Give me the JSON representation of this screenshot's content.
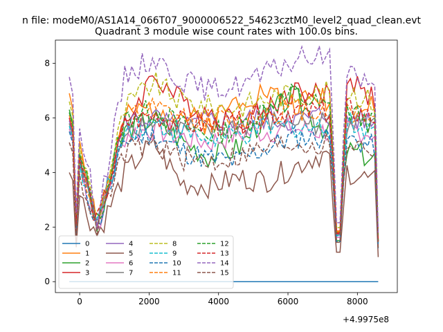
{
  "header": {
    "suptitle": "n file: modeM0/AS1A14_066T07_9000006522_54623cztM0_level2_quad_clean.evt",
    "title": "Quadrant 3 module wise count rates with 100.0s bins."
  },
  "axes": {
    "offset_label": "+4.9975e8",
    "x_ticks": [
      "0",
      "2000",
      "4000",
      "6000",
      "8000"
    ],
    "y_ticks": [
      "0",
      "2",
      "4",
      "6",
      "8"
    ]
  },
  "legend": {
    "labels": [
      "0",
      "1",
      "2",
      "3",
      "4",
      "5",
      "6",
      "7",
      "8",
      "9",
      "10",
      "11",
      "12",
      "13",
      "14",
      "15"
    ]
  },
  "chart_data": {
    "type": "line",
    "title": "Quadrant 3 module wise count rates with 100.0s bins.",
    "xlabel": "",
    "ylabel": "",
    "x_offset": 499750000,
    "xlim": [
      -700,
      9150
    ],
    "ylim": [
      -0.4,
      8.85
    ],
    "x_start": -300,
    "x_step": 100,
    "n_points": 90,
    "dropout_x": [
      -100,
      7450,
      8650
    ],
    "series": [
      {
        "name": "0",
        "color": "#1f77b4",
        "style": "solid",
        "level": 0.0,
        "values": [
          0.0,
          0.0,
          0.0,
          0.0
        ]
      },
      {
        "name": "1",
        "color": "#ff7f0e",
        "style": "solid",
        "level": 6.2,
        "values": [
          6.9,
          2.2,
          6.0,
          6.4,
          6.1,
          5.8,
          6.7,
          7.0,
          6.5,
          6.8,
          6.2,
          6.4
        ]
      },
      {
        "name": "2",
        "color": "#2ca02c",
        "style": "solid",
        "level": 5.0,
        "values": [
          6.3,
          2.0,
          5.6,
          6.0,
          5.2,
          4.6,
          4.9,
          6.1,
          6.8,
          5.7,
          4.8,
          4.5
        ]
      },
      {
        "name": "3",
        "color": "#d62728",
        "style": "solid",
        "level": 6.0,
        "values": [
          6.0,
          2.1,
          5.8,
          7.6,
          6.6,
          6.2,
          5.9,
          6.3,
          7.0,
          6.8,
          7.4,
          6.6
        ]
      },
      {
        "name": "4",
        "color": "#9467bd",
        "style": "solid",
        "level": 5.8,
        "values": [
          5.9,
          2.0,
          5.9,
          6.0,
          5.6,
          5.9,
          5.9,
          6.0,
          5.9,
          6.1,
          6.0,
          5.8
        ]
      },
      {
        "name": "5",
        "color": "#8c564b",
        "style": "solid",
        "level": 3.6,
        "values": [
          4.0,
          1.7,
          4.0,
          5.1,
          3.6,
          3.5,
          3.8,
          3.7,
          4.2,
          4.7,
          4.0,
          3.6
        ]
      },
      {
        "name": "6",
        "color": "#e377c2",
        "style": "solid",
        "level": 5.4,
        "values": [
          5.6,
          2.0,
          5.4,
          5.6,
          5.3,
          5.1,
          5.4,
          5.5,
          5.6,
          5.5,
          5.6,
          5.4
        ]
      },
      {
        "name": "7",
        "color": "#7f7f7f",
        "style": "solid",
        "level": 5.7,
        "values": [
          5.8,
          2.0,
          5.7,
          5.9,
          5.6,
          5.5,
          5.7,
          5.8,
          5.9,
          5.8,
          5.9,
          5.7
        ]
      },
      {
        "name": "8",
        "color": "#bcbd22",
        "style": "dashed",
        "level": 6.6,
        "values": [
          6.6,
          2.3,
          6.4,
          7.3,
          6.6,
          6.4,
          6.4,
          6.7,
          6.9,
          6.9,
          7.0,
          6.5
        ]
      },
      {
        "name": "9",
        "color": "#17becf",
        "style": "dashed",
        "level": 5.6,
        "values": [
          5.7,
          2.1,
          5.6,
          5.8,
          5.5,
          5.2,
          5.3,
          5.6,
          5.7,
          5.6,
          5.8,
          5.5
        ]
      },
      {
        "name": "10",
        "color": "#1f77b4",
        "style": "dashed",
        "level": 4.9,
        "values": [
          5.5,
          2.0,
          5.2,
          5.4,
          4.8,
          4.5,
          4.4,
          4.9,
          5.3,
          5.3,
          5.2,
          4.9
        ]
      },
      {
        "name": "11",
        "color": "#ff7f0e",
        "style": "dashed",
        "level": 6.1,
        "values": [
          6.1,
          2.2,
          6.0,
          6.3,
          6.0,
          5.9,
          5.9,
          6.2,
          6.3,
          6.3,
          6.4,
          6.0
        ]
      },
      {
        "name": "12",
        "color": "#2ca02c",
        "style": "dashed",
        "level": 5.9,
        "values": [
          6.2,
          2.1,
          6.0,
          6.3,
          5.7,
          5.4,
          5.6,
          6.4,
          6.9,
          6.4,
          6.2,
          5.7
        ]
      },
      {
        "name": "13",
        "color": "#d62728",
        "style": "dashed",
        "level": 5.9,
        "values": [
          6.0,
          2.1,
          5.8,
          6.1,
          5.8,
          5.7,
          5.8,
          6.1,
          6.3,
          6.2,
          6.3,
          5.9
        ]
      },
      {
        "name": "14",
        "color": "#9467bd",
        "style": "dashed",
        "level": 7.2,
        "values": [
          7.5,
          2.4,
          7.6,
          8.2,
          7.4,
          7.0,
          7.2,
          7.6,
          8.1,
          8.3,
          7.8,
          6.8
        ]
      },
      {
        "name": "15",
        "color": "#8c564b",
        "style": "dashed",
        "level": 4.8,
        "values": [
          5.1,
          2.0,
          4.8,
          5.0,
          4.5,
          4.4,
          4.6,
          4.9,
          5.1,
          5.0,
          5.1,
          4.8
        ]
      }
    ]
  }
}
